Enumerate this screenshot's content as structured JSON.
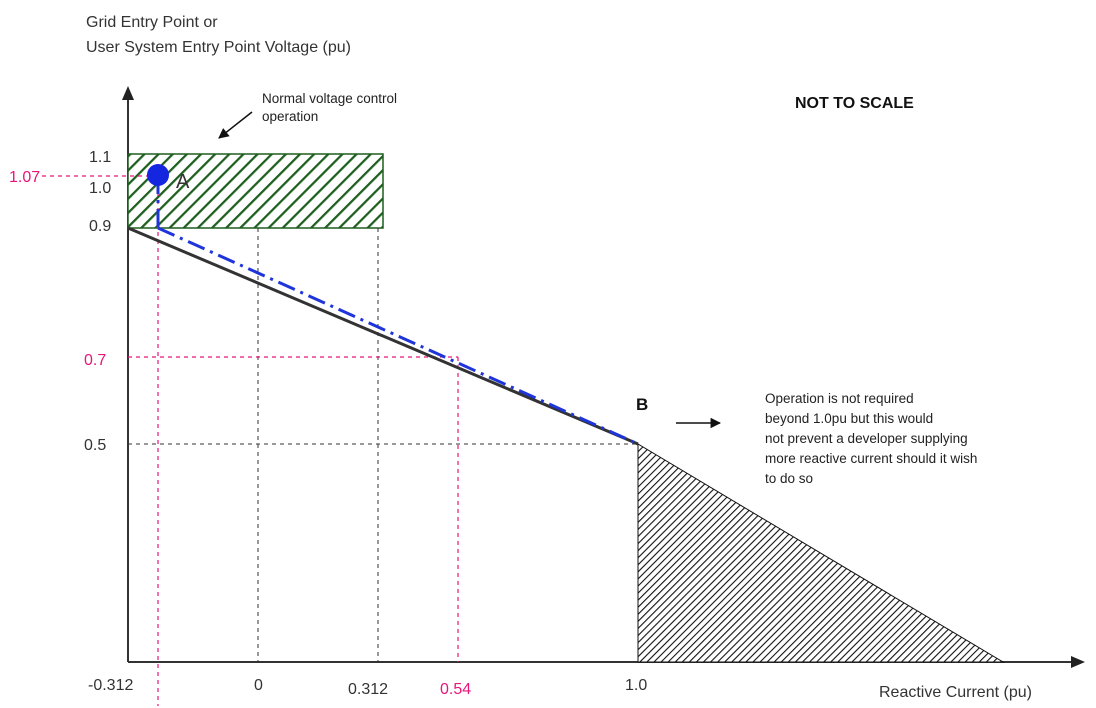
{
  "y_axis": {
    "title_line1": "Grid Entry Point or",
    "title_line2": "User System Entry Point Voltage (pu)",
    "ticks": [
      "1.1",
      "1.0",
      "0.9",
      "0.5"
    ],
    "highlight_ticks": [
      "1.07",
      "0.7"
    ]
  },
  "x_axis": {
    "title": "Reactive Current (pu)",
    "ticks": [
      "-0.312",
      "0",
      "0.312",
      "1.0"
    ],
    "highlight_ticks": [
      "0.54"
    ]
  },
  "annotations": {
    "normal_control_line1": "Normal voltage control",
    "normal_control_line2": "operation",
    "not_to_scale": "NOT TO SCALE",
    "point_a": "A",
    "point_b": "B",
    "note_lines": [
      "Operation is not required",
      "beyond 1.0pu but this would",
      "not prevent a developer supplying",
      "more reactive current should it wish",
      "to do so"
    ]
  },
  "colors": {
    "axis": "#333333",
    "characteristic": "#333333",
    "operating_line": "#1f35d9",
    "highlight": "#e8157a",
    "hatch_green": "#1e5e1e",
    "point_a": "#1426e0"
  }
}
